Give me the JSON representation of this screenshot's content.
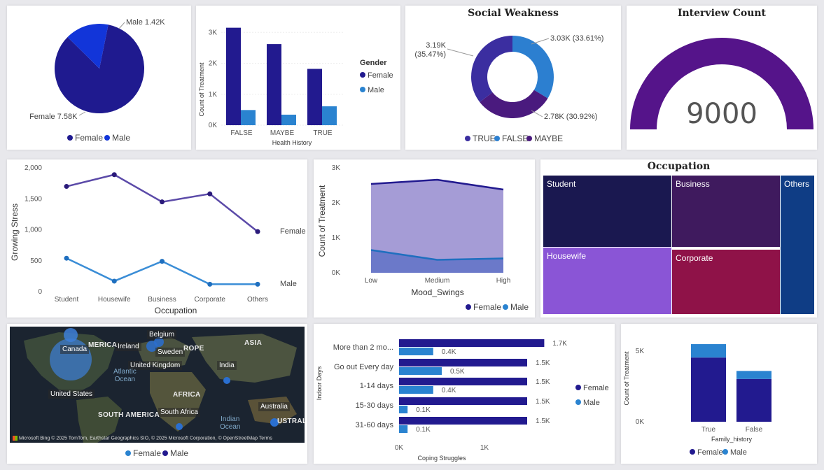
{
  "colors": {
    "female_pie": "#1f1a8f",
    "male_pie": "#1235d9",
    "bar_female": "#221a8f",
    "bar_male": "#2a83d0",
    "donut_true": "#3b2ea0",
    "donut_false": "#2c7fd0",
    "donut_maybe": "#4a1a7e",
    "gauge": "#55148a",
    "line_female": "#5b4aa8",
    "line_male": "#3a8dd6"
  },
  "gender_pie": {
    "chart_data": {
      "type": "pie",
      "labels": [
        "Female",
        "Male"
      ],
      "values": [
        7.58,
        1.42
      ],
      "units": "K",
      "data_labels": [
        "Female 7.58K",
        "Male 1.42K"
      ]
    },
    "legend": [
      "Female",
      "Male"
    ]
  },
  "health_history": {
    "chart_data": {
      "type": "bar",
      "categories": [
        "FALSE",
        "MAYBE",
        "TRUE"
      ],
      "series": [
        {
          "name": "Female",
          "values": [
            3150,
            2620,
            1820
          ]
        },
        {
          "name": "Male",
          "values": [
            490,
            340,
            610
          ]
        }
      ],
      "xlabel": "Health History",
      "ylabel": "Count of Treatment",
      "ylim": [
        0,
        3300
      ],
      "yticks": [
        "0K",
        "1K",
        "2K",
        "3K"
      ],
      "legend_title": "Gender",
      "legend_position": "right"
    }
  },
  "social_weakness": {
    "chart_data": {
      "type": "pie",
      "donut": true,
      "title": "Social Weakness",
      "labels": [
        "TRUE",
        "FALSE",
        "MAYBE"
      ],
      "values": [
        3.19,
        3.03,
        2.78
      ],
      "data_labels": [
        "3.19K\n(35.47%)",
        "3.03K (33.61%)",
        "2.78K (30.92%)"
      ]
    }
  },
  "interview": {
    "title": "Interview Count",
    "value": "9000",
    "fill_fraction": 1.0
  },
  "growing_stress": {
    "chart_data": {
      "type": "line",
      "categories": [
        "Student",
        "Housewife",
        "Business",
        "Corporate",
        "Others"
      ],
      "series": [
        {
          "name": "Female",
          "values": [
            1700,
            1890,
            1450,
            1580,
            970
          ]
        },
        {
          "name": "Male",
          "values": [
            540,
            170,
            490,
            120,
            120
          ]
        }
      ],
      "xlabel": "Occupation",
      "ylabel": "Growing Stress",
      "ylim": [
        0,
        2000
      ],
      "yticks": [
        "0",
        "500",
        "1,000",
        "1,500",
        "2,000"
      ]
    }
  },
  "mood_swings": {
    "chart_data": {
      "type": "area",
      "categories": [
        "Low",
        "Medium",
        "High"
      ],
      "series": [
        {
          "name": "Female",
          "values": [
            2540,
            2660,
            2380
          ]
        },
        {
          "name": "Male",
          "values": [
            650,
            370,
            410
          ]
        }
      ],
      "xlabel": "Mood_Swings",
      "ylabel": "Count of Treatment",
      "ylim": [
        0,
        3000
      ],
      "yticks": [
        "0K",
        "1K",
        "2K",
        "3K"
      ],
      "legend": [
        "Female",
        "Male"
      ]
    }
  },
  "occupation": {
    "title": "Occupation",
    "cells": [
      {
        "label": "Student",
        "color": "#1a1850"
      },
      {
        "label": "Business",
        "color": "#3f1a5e"
      },
      {
        "label": "Others",
        "color": "#0f3d85"
      },
      {
        "label": "Housewife",
        "color": "#8a55d6"
      },
      {
        "label": "Corporate",
        "color": "#8f1248"
      }
    ]
  },
  "map": {
    "countries": [
      "Canada",
      "Belgium",
      "Ireland",
      "Sweden",
      "United Kingdom",
      "India",
      "United States",
      "South Africa",
      "Australia"
    ],
    "continents": [
      "MERICA",
      "ROPE",
      "ASIA",
      "AFRICA",
      "SOUTH AMERICA",
      "USTRALI"
    ],
    "oceans": [
      "Atlantic\nOcean",
      "Indian\nOcean"
    ],
    "brand": "Microsoft Bing",
    "attribution": "© 2025 TomTom, Earthstar Geographics SIO, © 2025 Microsoft Corporation, © OpenStreetMap  Terms",
    "legend": [
      "Female",
      "Male"
    ]
  },
  "coping": {
    "chart_data": {
      "type": "bar",
      "orientation": "horizontal",
      "categories": [
        "More than 2 mo...",
        "Go out Every day",
        "1-14 days",
        "15-30 days",
        "31-60 days"
      ],
      "series": [
        {
          "name": "Female",
          "values": [
            1.7,
            1.5,
            1.5,
            1.5,
            1.5
          ],
          "data_labels": [
            "1.7K",
            "1.5K",
            "1.5K",
            "1.5K",
            "1.5K"
          ]
        },
        {
          "name": "Male",
          "values": [
            0.4,
            0.5,
            0.4,
            0.1,
            0.1
          ],
          "data_labels": [
            "0.4K",
            "0.5K",
            "0.4K",
            "0.1K",
            "0.1K"
          ]
        }
      ],
      "xlabel": "Coping Struggles",
      "ylabel": "Indoor Days",
      "xticks": [
        "0K",
        "1K"
      ],
      "units": "K",
      "legend": [
        "Female",
        "Male"
      ]
    }
  },
  "family_history": {
    "chart_data": {
      "type": "bar",
      "stacked": true,
      "categories": [
        "True",
        "False"
      ],
      "series": [
        {
          "name": "Female",
          "values": [
            4550,
            3030
          ]
        },
        {
          "name": "Male",
          "values": [
            950,
            570
          ]
        }
      ],
      "xlabel": "Family_history",
      "ylabel": "Count of Treatment",
      "ylim": [
        0,
        5700
      ],
      "yticks": [
        "0K",
        "5K"
      ],
      "legend": [
        "Female",
        "Male"
      ]
    }
  }
}
